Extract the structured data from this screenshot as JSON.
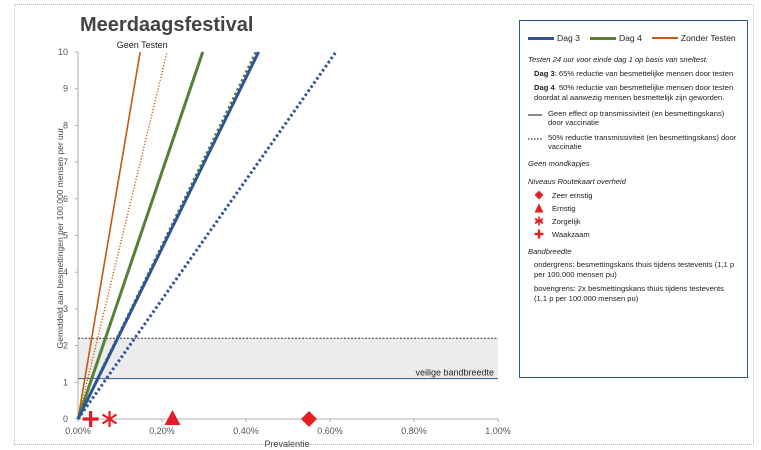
{
  "chart_data": {
    "type": "line",
    "title": "Meerdaagsfestival",
    "xlabel": "Prevalentie",
    "ylabel": "Gemiddeld aan besmettingen per 100.000 mensen per uur",
    "xlim": [
      0,
      1.0
    ],
    "ylim": [
      0,
      10
    ],
    "x_ticks": [
      "0.00%",
      "0.20%",
      "0.40%",
      "0.60%",
      "0.80%",
      "1.00%"
    ],
    "y_ticks": [
      "0",
      "1",
      "2",
      "3",
      "4",
      "5",
      "6",
      "7",
      "8",
      "9",
      "10"
    ],
    "grid": false,
    "series": [
      {
        "name": "Zonder Testen",
        "color": "#c55a11",
        "style": "solid",
        "points": [
          [
            0,
            0
          ],
          [
            0.148,
            10
          ]
        ]
      },
      {
        "name": "Zonder Testen",
        "color": "#c55a11",
        "style": "dotted",
        "points": [
          [
            0,
            0
          ],
          [
            0.212,
            10
          ]
        ]
      },
      {
        "name": "Dag 4",
        "color": "#548235",
        "style": "solid",
        "points": [
          [
            0,
            0
          ],
          [
            0.297,
            10
          ]
        ]
      },
      {
        "name": "Dag 4",
        "color": "#548235",
        "style": "dotted",
        "points": [
          [
            0,
            0
          ],
          [
            0.424,
            10
          ]
        ]
      },
      {
        "name": "Dag 3",
        "color": "#2f5597",
        "style": "solid",
        "points": [
          [
            0,
            0
          ],
          [
            0.43,
            10
          ]
        ]
      },
      {
        "name": "Dag 3",
        "color": "#2f5597",
        "style": "dotted",
        "points": [
          [
            0,
            0
          ],
          [
            0.614,
            10
          ]
        ]
      }
    ],
    "bands": [
      {
        "y_lower": 1.1,
        "y_upper": 2.2,
        "label": "veilige bandbreedte"
      }
    ],
    "annotations": [
      {
        "text": "Geen Testen",
        "x": 0.148,
        "y": 10
      }
    ],
    "markers": [
      {
        "name": "Waakzaam",
        "shape": "plus",
        "x": 0.03,
        "y": 0
      },
      {
        "name": "Zorgelijk",
        "shape": "asterisk",
        "x": 0.075,
        "y": 0
      },
      {
        "name": "Ernstig",
        "shape": "triangle",
        "x": 0.225,
        "y": 0
      },
      {
        "name": "Zeer ernstig",
        "shape": "diamond",
        "x": 0.55,
        "y": 0
      }
    ]
  },
  "legend": {
    "series": [
      {
        "label": "Dag 3",
        "color": "#2f5597"
      },
      {
        "label": "Dag 4",
        "color": "#548235"
      },
      {
        "label": "Zonder Testen",
        "color": "#c55a11"
      }
    ],
    "testing_note": "Testen 24 uur voor einde dag 1 op basis van sneltest.",
    "dag3_title": "Dag 3",
    "dag3_text": ": 65% reductie van besmettelijke mensen   door testen",
    "dag4_title": "Dag 4",
    "dag4_text": ". 50% reductie van besmettelijke mensen door testen doordat al aanwezig mensen besmettelijk zijn geworden.",
    "line_solid": "Geen effect op transmissiviteit (en besmettingskans) door vaccinatie",
    "line_dotted": "50% reductie transmissiviteit  (en besmettingskans) door vaccinatie",
    "no_masks": "Geen mondkapjes",
    "levels_title": "Niveaus Routekaart overheid",
    "levels": [
      {
        "label": "Zeer ernstig",
        "icon": "diamond-icon"
      },
      {
        "label": "Ernstig",
        "icon": "triangle-icon"
      },
      {
        "label": "Zorgelijk",
        "icon": "asterisk-icon"
      },
      {
        "label": "Waakzaam",
        "icon": "plus-icon"
      }
    ],
    "band_title": "Bandbreedte",
    "band_lower": "ondergrens: besmettingskans thuis tijdens testevents (1,1 p per 100.000 mensen pu)",
    "band_upper": "bovengrens: 2x besmettingskans thuis tijdens testevents (1,1 p per 100.000 mensen pu)"
  }
}
